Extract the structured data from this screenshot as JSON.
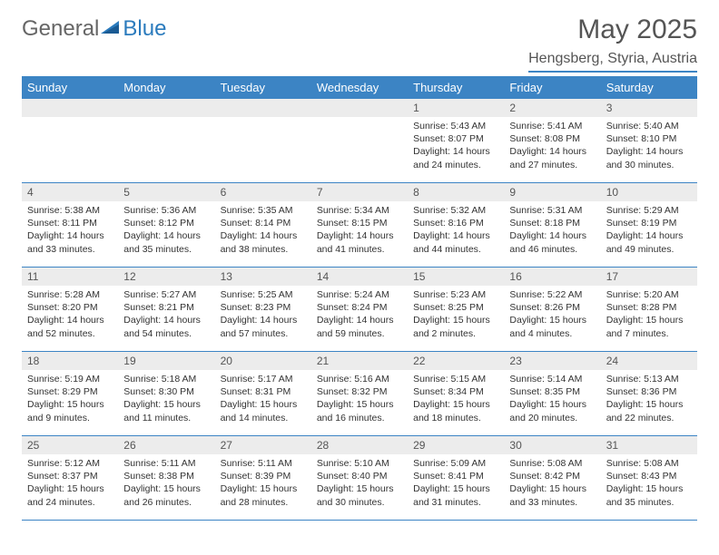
{
  "brand": {
    "part1": "General",
    "part2": "Blue"
  },
  "title": "May 2025",
  "location": "Hengsberg, Styria, Austria",
  "colors": {
    "header_bg": "#3c84c4",
    "header_text": "#ffffff",
    "daynum_bg": "#ececec",
    "rule": "#3c84c4",
    "body_text": "#333333"
  },
  "fonts": {
    "body_pt": 10.5,
    "header_pt": 13,
    "title_pt": 30,
    "location_pt": 16
  },
  "weekdays": [
    "Sunday",
    "Monday",
    "Tuesday",
    "Wednesday",
    "Thursday",
    "Friday",
    "Saturday"
  ],
  "weeks": [
    [
      {
        "blank": true
      },
      {
        "blank": true
      },
      {
        "blank": true
      },
      {
        "blank": true
      },
      {
        "n": "1",
        "sr": "5:43 AM",
        "ss": "8:07 PM",
        "dl": "14 hours and 24 minutes."
      },
      {
        "n": "2",
        "sr": "5:41 AM",
        "ss": "8:08 PM",
        "dl": "14 hours and 27 minutes."
      },
      {
        "n": "3",
        "sr": "5:40 AM",
        "ss": "8:10 PM",
        "dl": "14 hours and 30 minutes."
      }
    ],
    [
      {
        "n": "4",
        "sr": "5:38 AM",
        "ss": "8:11 PM",
        "dl": "14 hours and 33 minutes."
      },
      {
        "n": "5",
        "sr": "5:36 AM",
        "ss": "8:12 PM",
        "dl": "14 hours and 35 minutes."
      },
      {
        "n": "6",
        "sr": "5:35 AM",
        "ss": "8:14 PM",
        "dl": "14 hours and 38 minutes."
      },
      {
        "n": "7",
        "sr": "5:34 AM",
        "ss": "8:15 PM",
        "dl": "14 hours and 41 minutes."
      },
      {
        "n": "8",
        "sr": "5:32 AM",
        "ss": "8:16 PM",
        "dl": "14 hours and 44 minutes."
      },
      {
        "n": "9",
        "sr": "5:31 AM",
        "ss": "8:18 PM",
        "dl": "14 hours and 46 minutes."
      },
      {
        "n": "10",
        "sr": "5:29 AM",
        "ss": "8:19 PM",
        "dl": "14 hours and 49 minutes."
      }
    ],
    [
      {
        "n": "11",
        "sr": "5:28 AM",
        "ss": "8:20 PM",
        "dl": "14 hours and 52 minutes."
      },
      {
        "n": "12",
        "sr": "5:27 AM",
        "ss": "8:21 PM",
        "dl": "14 hours and 54 minutes."
      },
      {
        "n": "13",
        "sr": "5:25 AM",
        "ss": "8:23 PM",
        "dl": "14 hours and 57 minutes."
      },
      {
        "n": "14",
        "sr": "5:24 AM",
        "ss": "8:24 PM",
        "dl": "14 hours and 59 minutes."
      },
      {
        "n": "15",
        "sr": "5:23 AM",
        "ss": "8:25 PM",
        "dl": "15 hours and 2 minutes."
      },
      {
        "n": "16",
        "sr": "5:22 AM",
        "ss": "8:26 PM",
        "dl": "15 hours and 4 minutes."
      },
      {
        "n": "17",
        "sr": "5:20 AM",
        "ss": "8:28 PM",
        "dl": "15 hours and 7 minutes."
      }
    ],
    [
      {
        "n": "18",
        "sr": "5:19 AM",
        "ss": "8:29 PM",
        "dl": "15 hours and 9 minutes."
      },
      {
        "n": "19",
        "sr": "5:18 AM",
        "ss": "8:30 PM",
        "dl": "15 hours and 11 minutes."
      },
      {
        "n": "20",
        "sr": "5:17 AM",
        "ss": "8:31 PM",
        "dl": "15 hours and 14 minutes."
      },
      {
        "n": "21",
        "sr": "5:16 AM",
        "ss": "8:32 PM",
        "dl": "15 hours and 16 minutes."
      },
      {
        "n": "22",
        "sr": "5:15 AM",
        "ss": "8:34 PM",
        "dl": "15 hours and 18 minutes."
      },
      {
        "n": "23",
        "sr": "5:14 AM",
        "ss": "8:35 PM",
        "dl": "15 hours and 20 minutes."
      },
      {
        "n": "24",
        "sr": "5:13 AM",
        "ss": "8:36 PM",
        "dl": "15 hours and 22 minutes."
      }
    ],
    [
      {
        "n": "25",
        "sr": "5:12 AM",
        "ss": "8:37 PM",
        "dl": "15 hours and 24 minutes."
      },
      {
        "n": "26",
        "sr": "5:11 AM",
        "ss": "8:38 PM",
        "dl": "15 hours and 26 minutes."
      },
      {
        "n": "27",
        "sr": "5:11 AM",
        "ss": "8:39 PM",
        "dl": "15 hours and 28 minutes."
      },
      {
        "n": "28",
        "sr": "5:10 AM",
        "ss": "8:40 PM",
        "dl": "15 hours and 30 minutes."
      },
      {
        "n": "29",
        "sr": "5:09 AM",
        "ss": "8:41 PM",
        "dl": "15 hours and 31 minutes."
      },
      {
        "n": "30",
        "sr": "5:08 AM",
        "ss": "8:42 PM",
        "dl": "15 hours and 33 minutes."
      },
      {
        "n": "31",
        "sr": "5:08 AM",
        "ss": "8:43 PM",
        "dl": "15 hours and 35 minutes."
      }
    ]
  ],
  "labels": {
    "sunrise": "Sunrise:",
    "sunset": "Sunset:",
    "daylight": "Daylight:"
  }
}
